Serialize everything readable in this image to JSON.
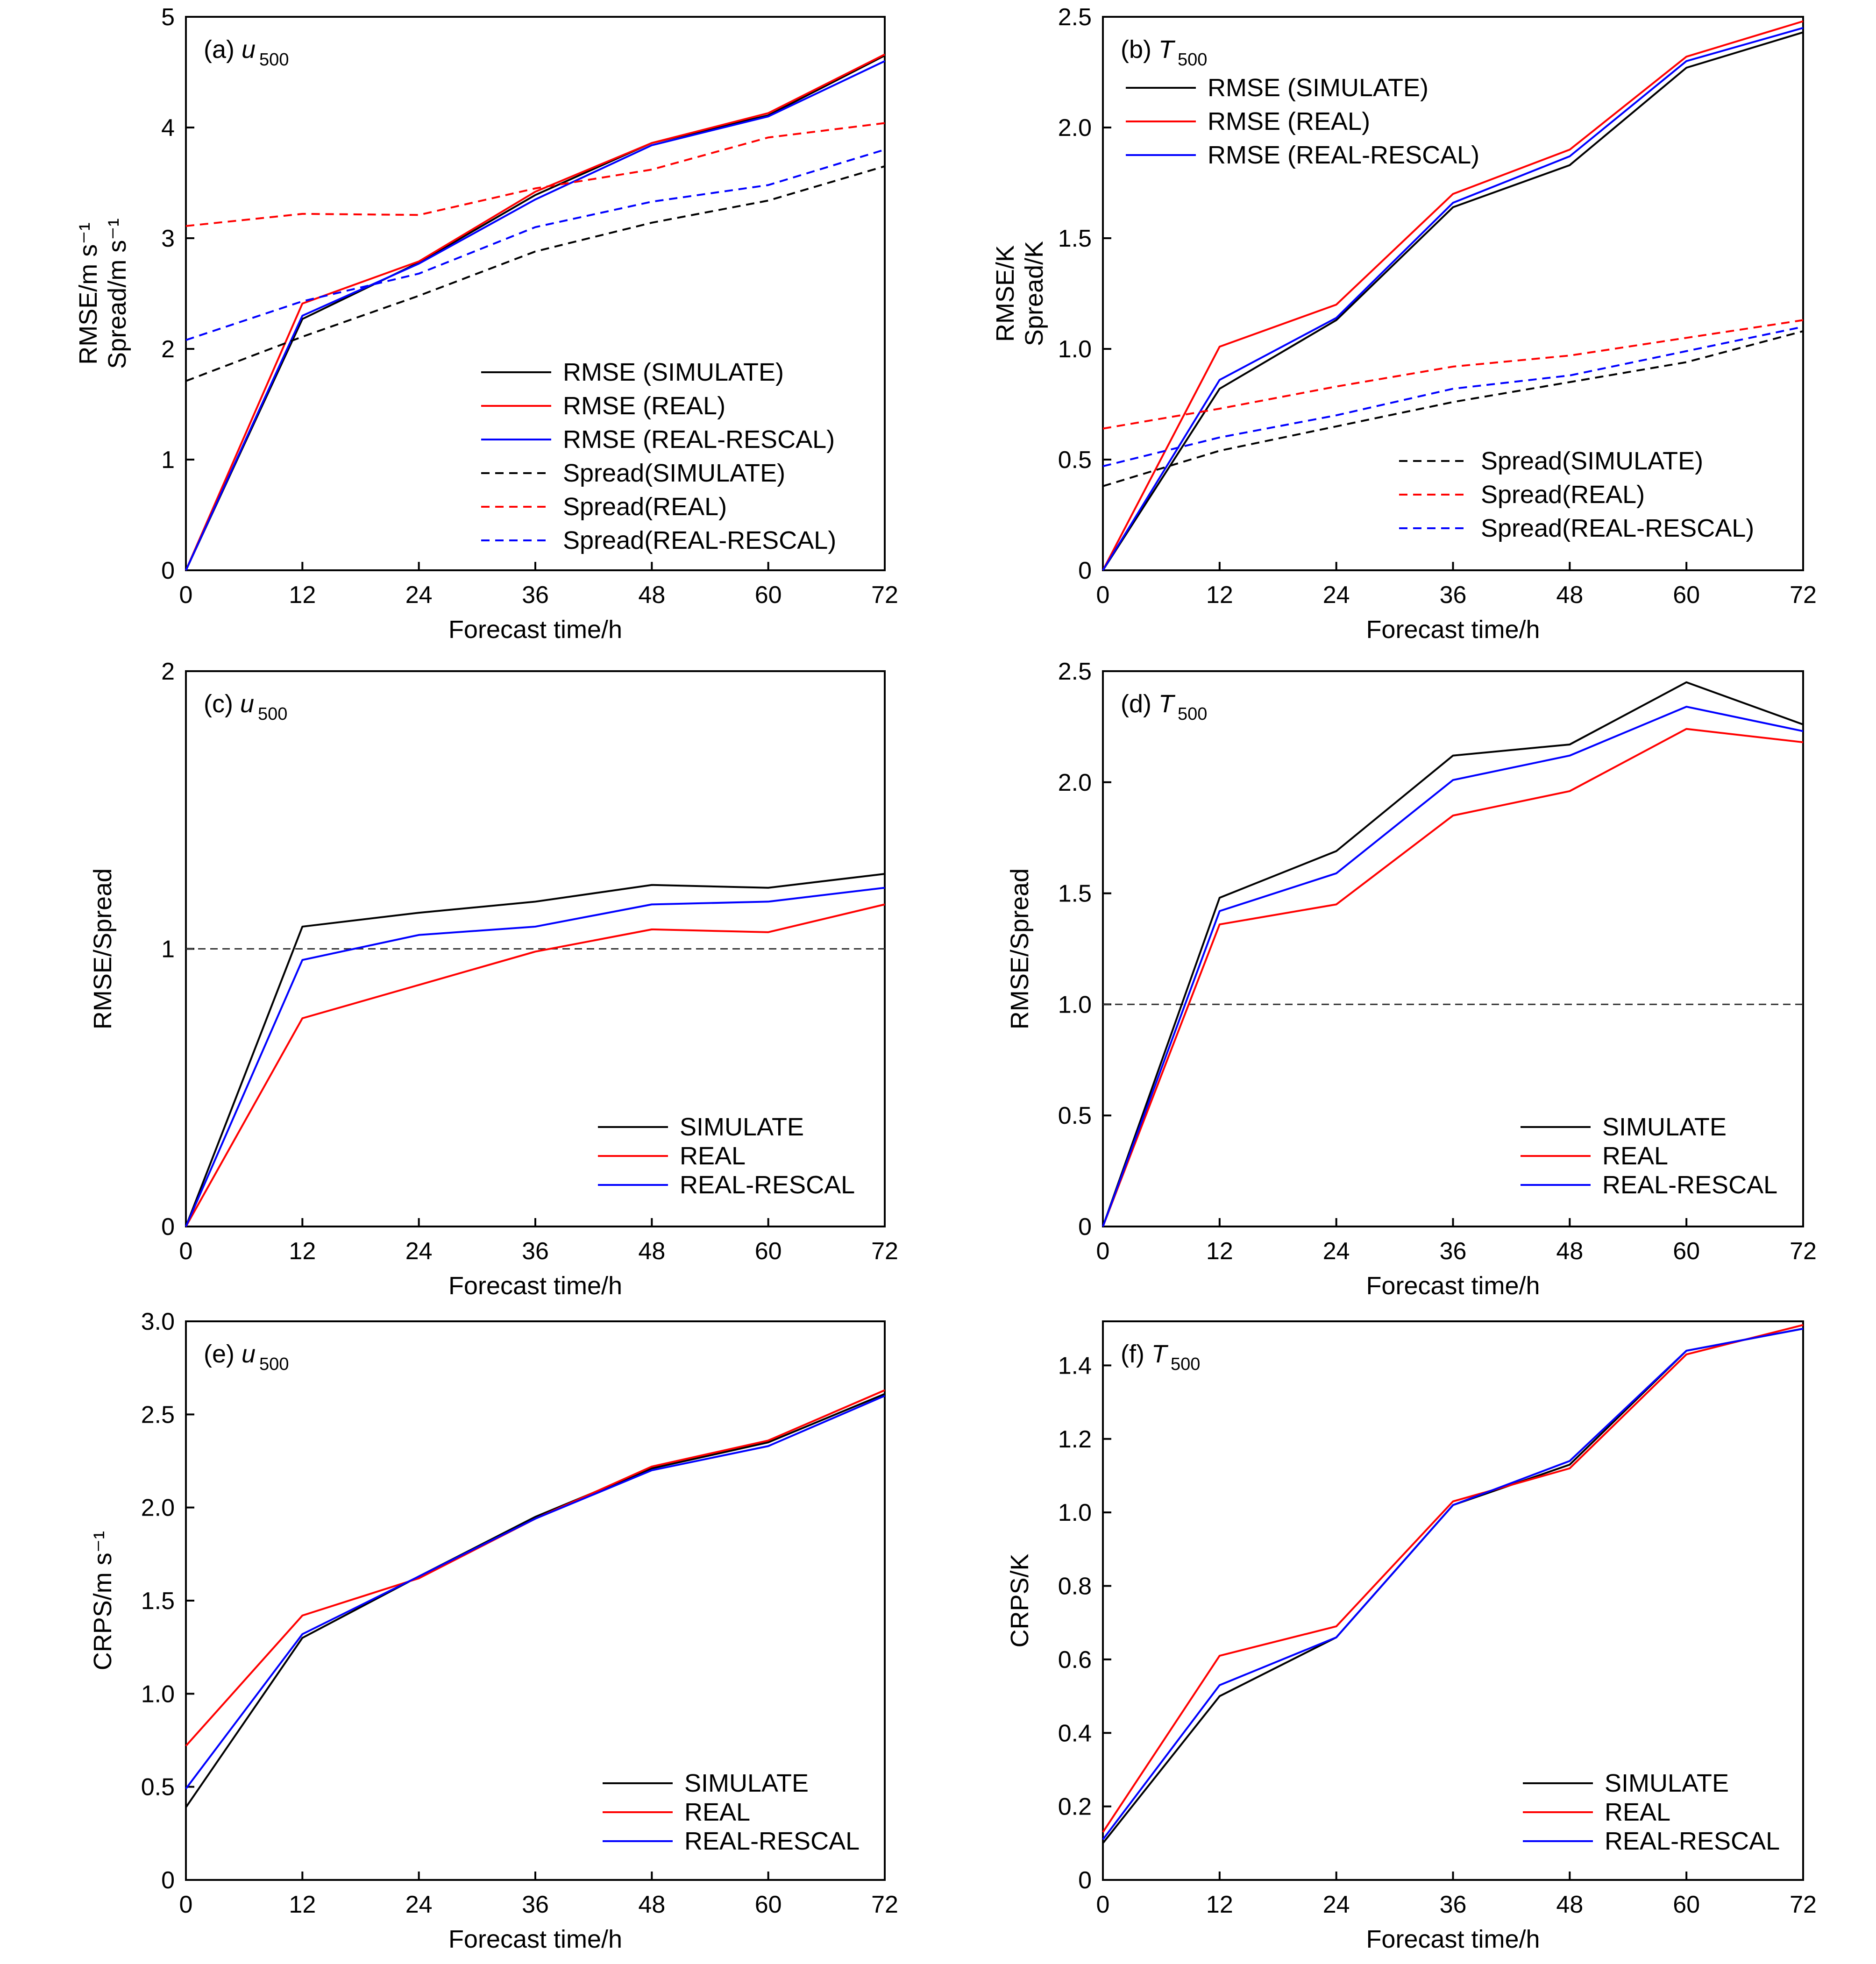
{
  "chart_data": [
    {
      "id": "a",
      "type": "line",
      "panel_label": "(a)",
      "title_var": "u",
      "title_sub": "500",
      "xlabel": "Forecast time/h",
      "ylabel_lines": [
        "RMSE/m s⁻¹",
        "Spread/m s⁻¹"
      ],
      "xlim": [
        0,
        72
      ],
      "ylim": [
        0,
        5
      ],
      "xticks": [
        0,
        12,
        24,
        36,
        48,
        60,
        72
      ],
      "yticks": [
        0,
        1,
        2,
        3,
        4,
        5
      ],
      "ytick_labels": [
        "0",
        "1",
        "2",
        "3",
        "4",
        "5"
      ],
      "x": [
        0,
        12,
        24,
        36,
        48,
        60,
        72
      ],
      "legend_position": "lower-right",
      "series": [
        {
          "name": "RMSE (SIMULATE)",
          "color": "#000000",
          "dashed": false,
          "values": [
            0,
            2.27,
            2.78,
            3.39,
            3.86,
            4.11,
            4.65
          ]
        },
        {
          "name": "RMSE (REAL)",
          "color": "#ff0000",
          "dashed": false,
          "values": [
            0,
            2.41,
            2.79,
            3.42,
            3.86,
            4.13,
            4.66
          ]
        },
        {
          "name": "RMSE (REAL-RESCAL)",
          "color": "#0000ff",
          "dashed": false,
          "values": [
            0,
            2.3,
            2.77,
            3.35,
            3.84,
            4.1,
            4.6
          ]
        },
        {
          "name": "Spread(SIMULATE)",
          "color": "#000000",
          "dashed": true,
          "values": [
            1.71,
            2.11,
            2.48,
            2.88,
            3.14,
            3.34,
            3.65
          ]
        },
        {
          "name": "Spread(REAL)",
          "color": "#ff0000",
          "dashed": true,
          "values": [
            3.11,
            3.22,
            3.21,
            3.45,
            3.62,
            3.91,
            4.04
          ]
        },
        {
          "name": "Spread(REAL-RESCAL)",
          "color": "#0000ff",
          "dashed": true,
          "values": [
            2.08,
            2.43,
            2.68,
            3.1,
            3.33,
            3.48,
            3.8
          ]
        }
      ]
    },
    {
      "id": "b",
      "type": "line",
      "panel_label": "(b)",
      "title_var": "T",
      "title_sub": "500",
      "xlabel": "Forecast time/h",
      "ylabel_lines": [
        "RMSE/K",
        "Spread/K"
      ],
      "xlim": [
        0,
        72
      ],
      "ylim": [
        0,
        2.5
      ],
      "xticks": [
        0,
        12,
        24,
        36,
        48,
        60,
        72
      ],
      "yticks": [
        0,
        0.5,
        1.0,
        1.5,
        2.0,
        2.5
      ],
      "ytick_labels": [
        "0",
        "0.5",
        "1.0",
        "1.5",
        "2.0",
        "2.5"
      ],
      "x": [
        0,
        12,
        24,
        36,
        48,
        60,
        72
      ],
      "legend_position": "upper-left / lower-right",
      "series": [
        {
          "name": "RMSE (SIMULATE)",
          "color": "#000000",
          "dashed": false,
          "values": [
            0,
            0.82,
            1.13,
            1.64,
            1.83,
            2.27,
            2.43
          ]
        },
        {
          "name": "RMSE (REAL)",
          "color": "#ff0000",
          "dashed": false,
          "values": [
            0,
            1.01,
            1.2,
            1.7,
            1.9,
            2.32,
            2.48
          ]
        },
        {
          "name": "RMSE (REAL-RESCAL)",
          "color": "#0000ff",
          "dashed": false,
          "values": [
            0,
            0.86,
            1.14,
            1.66,
            1.87,
            2.3,
            2.45
          ]
        },
        {
          "name": "Spread(SIMULATE)",
          "color": "#000000",
          "dashed": true,
          "values": [
            0.38,
            0.54,
            0.65,
            0.76,
            0.85,
            0.94,
            1.08
          ]
        },
        {
          "name": "Spread(REAL)",
          "color": "#ff0000",
          "dashed": true,
          "values": [
            0.64,
            0.73,
            0.83,
            0.92,
            0.97,
            1.05,
            1.13
          ]
        },
        {
          "name": "Spread(REAL-RESCAL)",
          "color": "#0000ff",
          "dashed": true,
          "values": [
            0.47,
            0.6,
            0.7,
            0.82,
            0.88,
            0.99,
            1.1
          ]
        }
      ]
    },
    {
      "id": "c",
      "type": "line",
      "panel_label": "(c)",
      "title_var": "u",
      "title_sub": "500",
      "xlabel": "Forecast time/h",
      "ylabel_lines": [
        "RMSE/Spread"
      ],
      "xlim": [
        0,
        72
      ],
      "ylim": [
        0,
        2
      ],
      "xticks": [
        0,
        12,
        24,
        36,
        48,
        60,
        72
      ],
      "yticks": [
        0,
        1,
        2
      ],
      "ytick_labels": [
        "0",
        "1",
        "2"
      ],
      "x": [
        0,
        12,
        24,
        36,
        48,
        60,
        72
      ],
      "reference_line": 1,
      "legend_position": "lower-right",
      "series": [
        {
          "name": "SIMULATE",
          "color": "#000000",
          "dashed": false,
          "values": [
            0,
            1.08,
            1.13,
            1.17,
            1.23,
            1.22,
            1.27
          ]
        },
        {
          "name": "REAL",
          "color": "#ff0000",
          "dashed": false,
          "values": [
            0,
            0.75,
            0.87,
            0.99,
            1.07,
            1.06,
            1.16
          ]
        },
        {
          "name": "REAL-RESCAL",
          "color": "#0000ff",
          "dashed": false,
          "values": [
            0,
            0.96,
            1.05,
            1.08,
            1.16,
            1.17,
            1.22
          ]
        }
      ]
    },
    {
      "id": "d",
      "type": "line",
      "panel_label": "(d)",
      "title_var": "T",
      "title_sub": "500",
      "xlabel": "Forecast time/h",
      "ylabel_lines": [
        "RMSE/Spread"
      ],
      "xlim": [
        0,
        72
      ],
      "ylim": [
        0,
        2.5
      ],
      "xticks": [
        0,
        12,
        24,
        36,
        48,
        60,
        72
      ],
      "yticks": [
        0,
        0.5,
        1.0,
        1.5,
        2.0,
        2.5
      ],
      "ytick_labels": [
        "0",
        "0.5",
        "1.0",
        "1.5",
        "2.0",
        "2.5"
      ],
      "x": [
        0,
        12,
        24,
        36,
        48,
        60,
        72
      ],
      "reference_line": 1,
      "legend_position": "lower-right",
      "series": [
        {
          "name": "SIMULATE",
          "color": "#000000",
          "dashed": false,
          "values": [
            0,
            1.48,
            1.69,
            2.12,
            2.17,
            2.45,
            2.26
          ]
        },
        {
          "name": "REAL",
          "color": "#ff0000",
          "dashed": false,
          "values": [
            0,
            1.36,
            1.45,
            1.85,
            1.96,
            2.24,
            2.18
          ]
        },
        {
          "name": "REAL-RESCAL",
          "color": "#0000ff",
          "dashed": false,
          "values": [
            0,
            1.42,
            1.59,
            2.01,
            2.12,
            2.34,
            2.23
          ]
        }
      ]
    },
    {
      "id": "e",
      "type": "line",
      "panel_label": "(e)",
      "title_var": "u",
      "title_sub": "500",
      "xlabel": "Forecast time/h",
      "ylabel_lines": [
        "CRPS/m s⁻¹"
      ],
      "xlim": [
        0,
        72
      ],
      "ylim": [
        0,
        3.0
      ],
      "xticks": [
        0,
        12,
        24,
        36,
        48,
        60,
        72
      ],
      "yticks": [
        0,
        0.5,
        1.0,
        1.5,
        2.0,
        2.5,
        3.0
      ],
      "ytick_labels": [
        "0",
        "0.5",
        "1.0",
        "1.5",
        "2.0",
        "2.5",
        "3.0"
      ],
      "x": [
        0,
        12,
        24,
        36,
        48,
        60,
        72
      ],
      "legend_position": "lower-right",
      "series": [
        {
          "name": "SIMULATE",
          "color": "#000000",
          "dashed": false,
          "values": [
            0.39,
            1.3,
            1.63,
            1.95,
            2.21,
            2.35,
            2.61
          ]
        },
        {
          "name": "REAL",
          "color": "#ff0000",
          "dashed": false,
          "values": [
            0.72,
            1.42,
            1.62,
            1.94,
            2.22,
            2.36,
            2.63
          ]
        },
        {
          "name": "REAL-RESCAL",
          "color": "#0000ff",
          "dashed": false,
          "values": [
            0.49,
            1.32,
            1.63,
            1.94,
            2.2,
            2.33,
            2.6
          ]
        }
      ]
    },
    {
      "id": "f",
      "type": "line",
      "panel_label": "(f)",
      "title_var": "T",
      "title_sub": "500",
      "xlabel": "Forecast time/h",
      "ylabel_lines": [
        "CRPS/K"
      ],
      "xlim": [
        0,
        72
      ],
      "ylim": [
        0,
        1.52
      ],
      "xticks": [
        0,
        12,
        24,
        36,
        48,
        60,
        72
      ],
      "yticks": [
        0,
        0.2,
        0.4,
        0.6,
        0.8,
        1.0,
        1.2,
        1.4
      ],
      "ytick_labels": [
        "0",
        "0.2",
        "0.4",
        "0.6",
        "0.8",
        "1.0",
        "1.2",
        "1.4"
      ],
      "x": [
        0,
        12,
        24,
        36,
        48,
        60,
        72
      ],
      "legend_position": "lower-right",
      "series": [
        {
          "name": "SIMULATE",
          "color": "#000000",
          "dashed": false,
          "values": [
            0.1,
            0.5,
            0.66,
            1.02,
            1.13,
            1.44,
            1.5
          ]
        },
        {
          "name": "REAL",
          "color": "#ff0000",
          "dashed": false,
          "values": [
            0.13,
            0.61,
            0.69,
            1.03,
            1.12,
            1.43,
            1.51
          ]
        },
        {
          "name": "REAL-RESCAL",
          "color": "#0000ff",
          "dashed": false,
          "values": [
            0.11,
            0.53,
            0.66,
            1.02,
            1.14,
            1.44,
            1.5
          ]
        }
      ]
    }
  ]
}
